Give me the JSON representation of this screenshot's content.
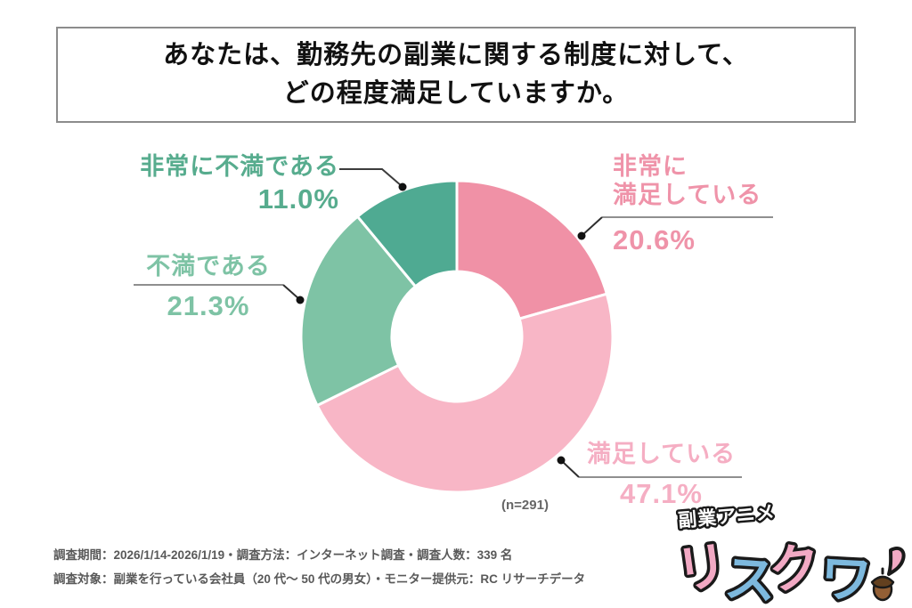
{
  "title": {
    "line1": "あなたは、勤務先の副業に関する制度に対して、",
    "line2": "どの程度満足していますか。"
  },
  "chart_data": {
    "type": "pie",
    "subtype": "donut",
    "title": "あなたは、勤務先の副業に関する制度に対して、どの程度満足していますか。",
    "sample_note": "(n=291)",
    "sample_n": 291,
    "start_angle_deg": 0,
    "direction": "clockwise",
    "legend_position": "callout-labels",
    "segments": [
      {
        "id": "very-satisfied",
        "label": "非常に満足している",
        "value": 20.6,
        "display": "20.6%",
        "color": "#f091a6"
      },
      {
        "id": "satisfied",
        "label": "満足している",
        "value": 47.1,
        "display": "47.1%",
        "color": "#f8b6c6"
      },
      {
        "id": "dissatisfied",
        "label": "不満である",
        "value": 21.3,
        "display": "21.3%",
        "color": "#7ec3a5"
      },
      {
        "id": "very-dissatisfied",
        "label": "非常に不満である",
        "value": 11.0,
        "display": "11.0%",
        "color": "#4faa92"
      }
    ]
  },
  "callouts": [
    {
      "id": "very-dissatisfied",
      "line1": "非常に不満である",
      "pct": "11.0%",
      "color": "#57ac8e"
    },
    {
      "id": "dissatisfied",
      "line1": "不満である",
      "pct": "21.3%",
      "color": "#7ec3a5"
    },
    {
      "id": "very-satisfied",
      "line1": "非常に",
      "line2": "満足している",
      "pct": "20.6%",
      "color": "#ef93a9"
    },
    {
      "id": "satisfied",
      "line1": "満足している",
      "pct": "47.1%",
      "color": "#f5aec3"
    }
  ],
  "footer": {
    "line1": "調査期間：2026/1/14-2026/1/19・調査方法：インターネット調査・調査人数：339 名",
    "line2": "調査対象：副業を行っている会社員（20 代〜 50 代の男女）・モニター提供元：RC リサーチデータ"
  },
  "logo": {
    "tagline": "副業アニメ",
    "name": "リスクワ",
    "chars": [
      "リ",
      "ス",
      "ク",
      "ワ"
    ],
    "pink": "#f2a9c4",
    "blue": "#7db9de",
    "acorn_body": "#935f35",
    "acorn_cap": "#63401f"
  }
}
